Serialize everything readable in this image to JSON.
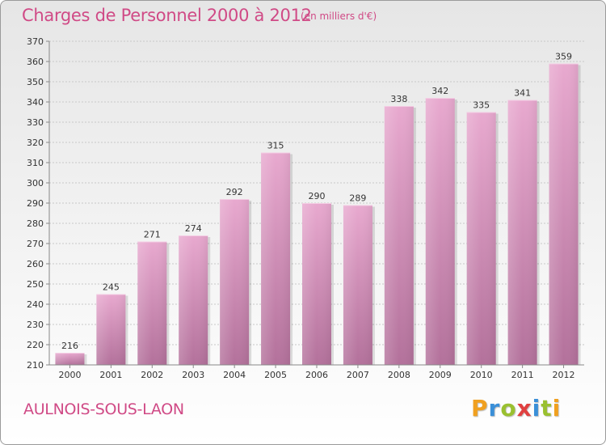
{
  "header": {
    "title": "Charges de Personnel 2000 à 2012",
    "subtitle": "(en milliers d'€)"
  },
  "footer": {
    "commune": "AULNOIS-SOUS-LAON",
    "logo": "Proxiti"
  },
  "colors": {
    "title": "#d04a86",
    "bar_top": "#e8a9cf",
    "bar_bottom": "#b3719b",
    "logo_letters": [
      "#f0a020",
      "#3a8fd8",
      "#9ac030",
      "#e04040",
      "#3a8fd8",
      "#9ac030",
      "#f0a020"
    ]
  },
  "chart_data": {
    "type": "bar",
    "title": "Charges de Personnel 2000 à 2012",
    "subtitle": "(en milliers d'€)",
    "xlabel": "",
    "ylabel": "",
    "categories": [
      "2000",
      "2001",
      "2002",
      "2003",
      "2004",
      "2005",
      "2006",
      "2007",
      "2008",
      "2009",
      "2010",
      "2011",
      "2012"
    ],
    "values": [
      216,
      245,
      271,
      274,
      292,
      315,
      290,
      289,
      338,
      342,
      335,
      341,
      359
    ],
    "ylim": [
      210,
      370
    ],
    "yticks": [
      210,
      220,
      230,
      240,
      250,
      260,
      270,
      280,
      290,
      300,
      310,
      320,
      330,
      340,
      350,
      360,
      370
    ],
    "grid": true,
    "legend": "none"
  }
}
